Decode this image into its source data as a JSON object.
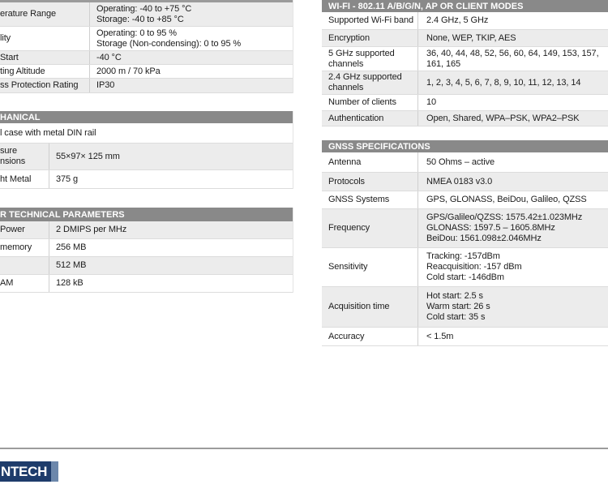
{
  "sections": {
    "env": {
      "rows": [
        {
          "label": "erature Range",
          "value": "Operating: -40 to +75 °C\nStorage: -40 to +85 °C"
        },
        {
          "label": "lity",
          "value": "Operating: 0 to 95 %\nStorage (Non-condensing): 0 to 95 %"
        },
        {
          "label": "Start",
          "value": "-40 °C"
        },
        {
          "label": "ting Altitude",
          "value": "2000 m / 70 kPa"
        },
        {
          "label": "ss Protection Rating",
          "value": "IP30"
        }
      ]
    },
    "mechanical": {
      "header": "HANICAL",
      "full_row": "l case with metal DIN rail",
      "rows": [
        {
          "label": "sure\nnsions",
          "value": "55×97× 125 mm"
        },
        {
          "label": "ht Metal",
          "value": "375 g"
        }
      ]
    },
    "other": {
      "header": "R TECHNICAL PARAMETERS",
      "rows": [
        {
          "label": "Power",
          "value": "2 DMIPS per MHz"
        },
        {
          "label": "memory",
          "value": "256 MB"
        },
        {
          "label": "",
          "value": "512 MB"
        },
        {
          "label": "AM",
          "value": "128 kB"
        }
      ]
    },
    "wifi": {
      "header": "WI-FI - 802.11 A/B/G/N, AP OR CLIENT MODES",
      "rows": [
        {
          "label": "Supported Wi-Fi band",
          "value": "2.4 GHz, 5 GHz"
        },
        {
          "label": "Encryption",
          "value": "None, WEP, TKIP, AES"
        },
        {
          "label": "5 GHz supported channels",
          "value": "36, 40, 44, 48, 52, 56, 60, 64, 149, 153, 157, 161, 165"
        },
        {
          "label": "2.4 GHz supported channels",
          "value": "1, 2, 3, 4, 5, 6, 7, 8, 9, 10, 11, 12, 13, 14"
        },
        {
          "label": "Number of clients",
          "value": "10"
        },
        {
          "label": "Authentication",
          "value": "Open, Shared, WPA–PSK, WPA2–PSK"
        }
      ]
    },
    "gnss": {
      "header": "GNSS SPECIFICATIONS",
      "rows": [
        {
          "label": "Antenna",
          "value": "50 Ohms – active"
        },
        {
          "label": "Protocols",
          "value": "NMEA 0183 v3.0"
        },
        {
          "label": "GNSS Systems",
          "value": "GPS, GLONASS, BeiDou, Galileo, QZSS"
        },
        {
          "label": "Frequency",
          "value": "GPS/Galileo/QZSS: 1575.42±1.023MHz\nGLONASS: 1597.5 – 1605.8MHz\nBeiDou: 1561.098±2.046MHz"
        },
        {
          "label": "Sensitivity",
          "value": "Tracking: -157dBm\nReacquisition: -157 dBm\nCold start: -146dBm"
        },
        {
          "label": "Acquisition time",
          "value": "Hot start: 2.5 s\nWarm start: 26 s\nCold start: 35 s"
        },
        {
          "label": "Accuracy",
          "value": "< 1.5m"
        }
      ]
    }
  },
  "footer": {
    "logo_text": "NTECH"
  },
  "colors": {
    "header_bar": "#898989",
    "shaded_row": "#ececec",
    "logo_navy": "#1e3c6b",
    "logo_accent": "#6c87ab",
    "rule_gray": "#9c9c9c"
  }
}
